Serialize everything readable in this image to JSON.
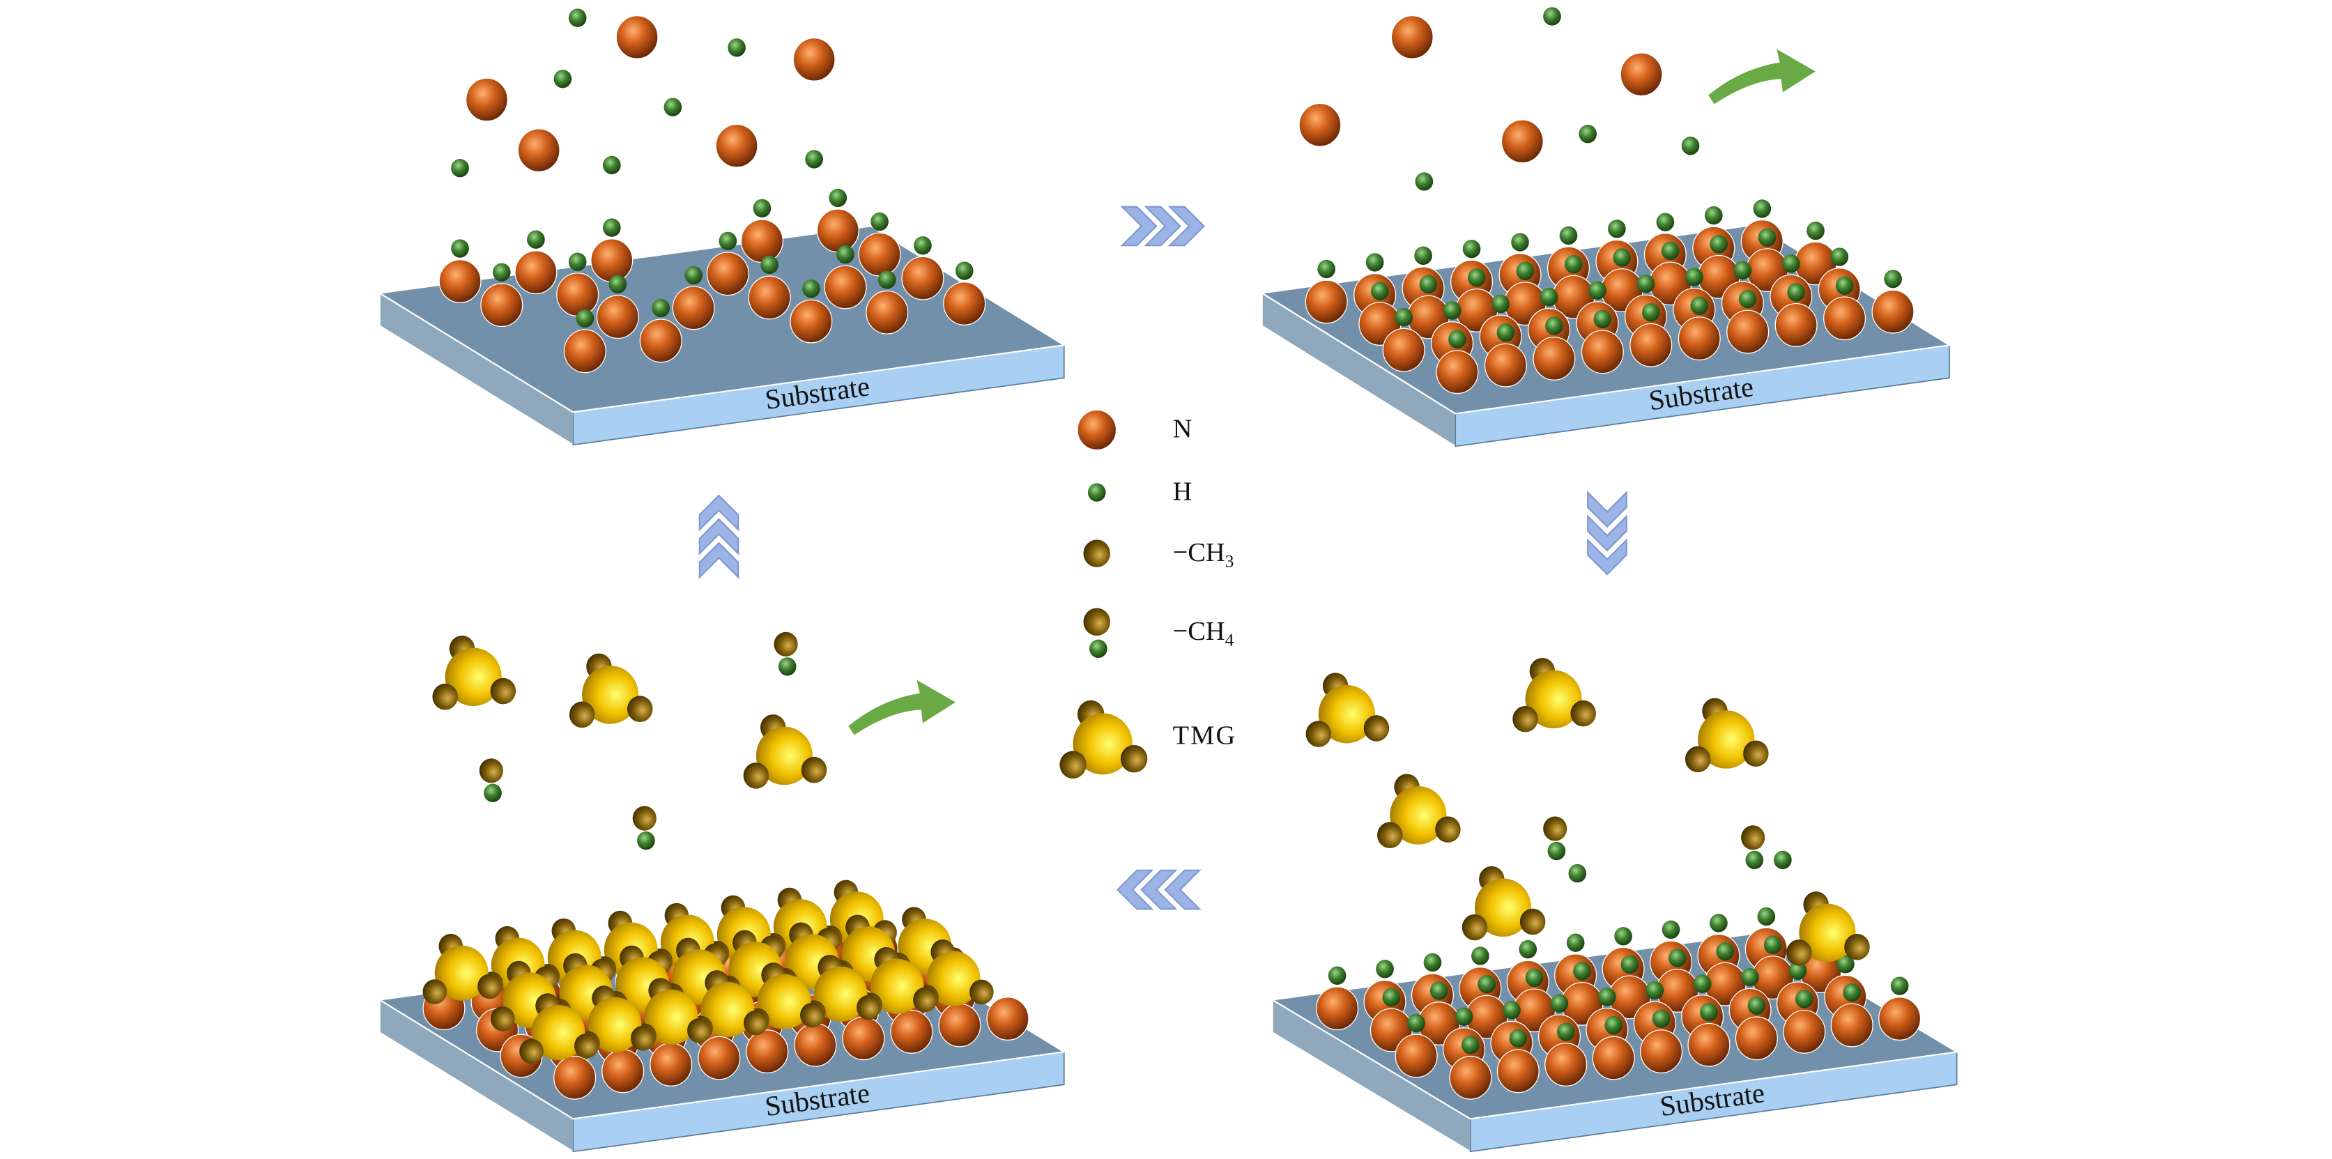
{
  "substrate_labels": [
    "Substrate",
    "Substrate",
    "Substrate",
    "Substrate"
  ],
  "legend": {
    "n": {
      "label": "N"
    },
    "h": {
      "label": "H"
    },
    "ch3": {
      "label": "−CH",
      "subscript": "3"
    },
    "ch4": {
      "label": "−CH",
      "subscript": "4"
    },
    "tmg": {
      "label": "TMG"
    }
  },
  "colors": {
    "nitrogen": "#d2601a",
    "hydrogen": "#3f7f2f",
    "methyl": "#7a5a08",
    "gallium": "#f2c200",
    "substrate_top": "#7390ab",
    "substrate_front": "#a9d0f2",
    "substrate_side": "#90a8bc",
    "cycle_arrow": "#9cb3e6",
    "exhaust_arrow": "#6aaa45"
  },
  "icons": {
    "cycle_arrows": [
      "chevron-right-icon",
      "chevron-down-icon",
      "chevron-left-icon",
      "chevron-up-icon"
    ],
    "exhaust_arrows": [
      "curved-arrow-icon",
      "curved-arrow-icon"
    ]
  }
}
